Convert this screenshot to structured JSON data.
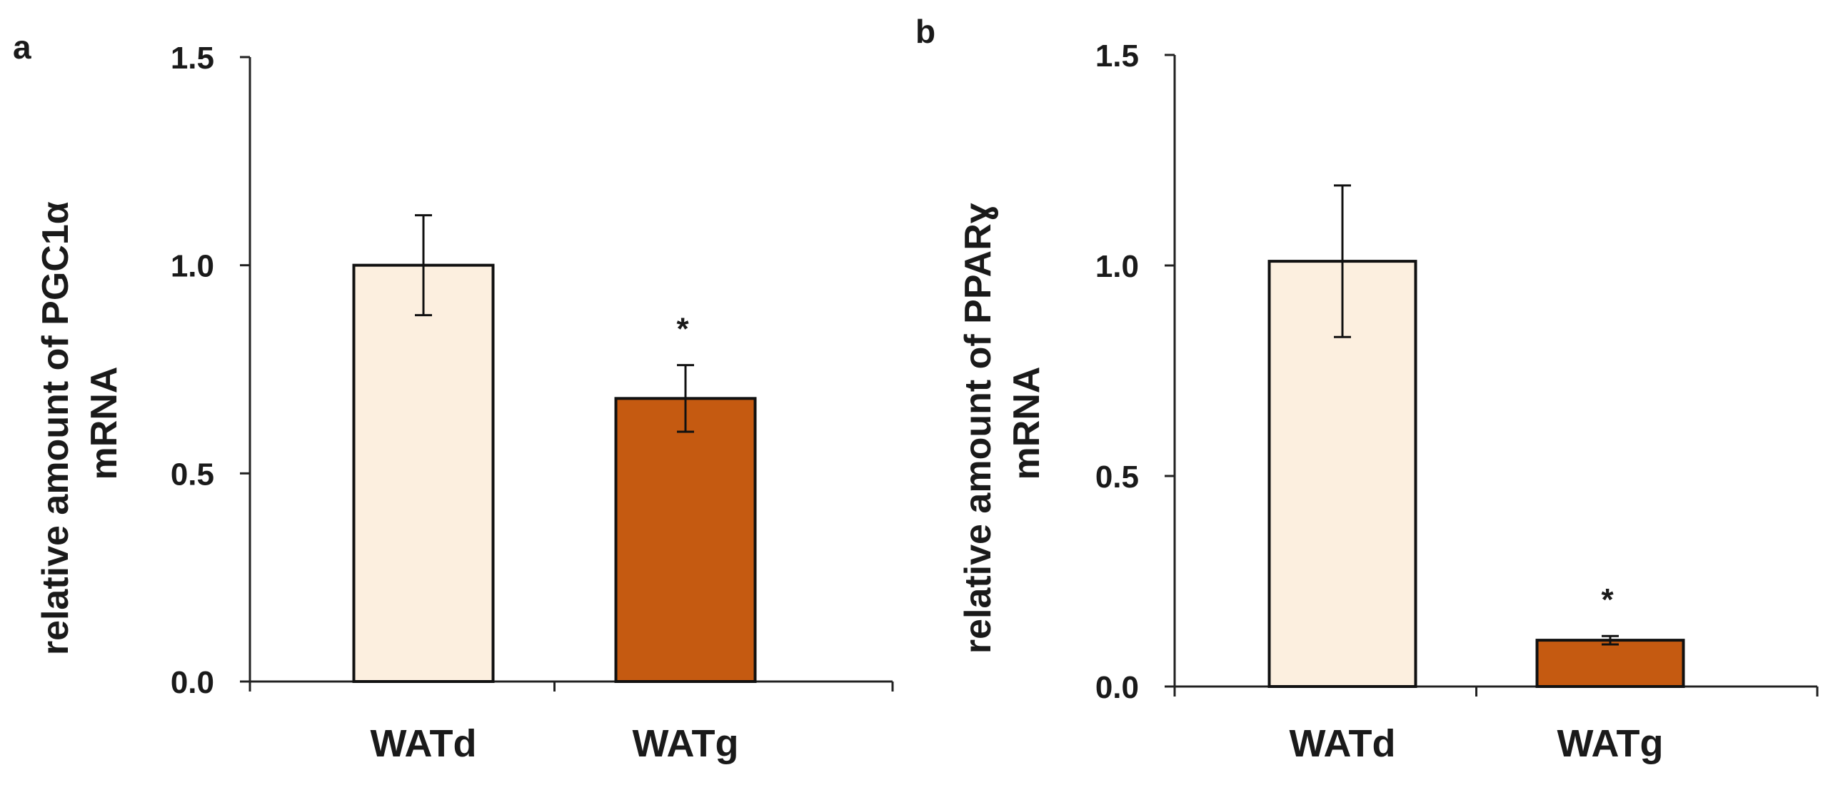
{
  "chart_data": [
    {
      "panel_label": "a",
      "type": "bar",
      "categories": [
        "WATd",
        "WATg"
      ],
      "values": [
        1.0,
        0.68
      ],
      "errors": [
        0.12,
        0.08
      ],
      "significance": [
        "",
        "*"
      ],
      "bar_colors": [
        "#fcefdf",
        "#c55a11"
      ],
      "title": "",
      "xlabel": "",
      "ylabel_lines": [
        "relative amount of PGC1α",
        "mRNA"
      ],
      "ylim": [
        0,
        1.5
      ],
      "yticks": [
        0.0,
        0.5,
        1.0,
        1.5
      ],
      "ytick_labels": [
        "0.0",
        "0.5",
        "1.0",
        "1.5"
      ],
      "grid": false
    },
    {
      "panel_label": "b",
      "type": "bar",
      "categories": [
        "WATd",
        "WATg"
      ],
      "values": [
        1.01,
        0.11
      ],
      "errors": [
        0.18,
        0.01
      ],
      "significance": [
        "",
        "*"
      ],
      "bar_colors": [
        "#fcefdf",
        "#c55a11"
      ],
      "title": "",
      "xlabel": "",
      "ylabel_lines": [
        "relative amount of PPARɣ",
        "mRNA"
      ],
      "ylim": [
        0,
        1.5
      ],
      "yticks": [
        0.0,
        0.5,
        1.0,
        1.5
      ],
      "ytick_labels": [
        "0.0",
        "0.5",
        "1.0",
        "1.5"
      ],
      "grid": false
    }
  ]
}
